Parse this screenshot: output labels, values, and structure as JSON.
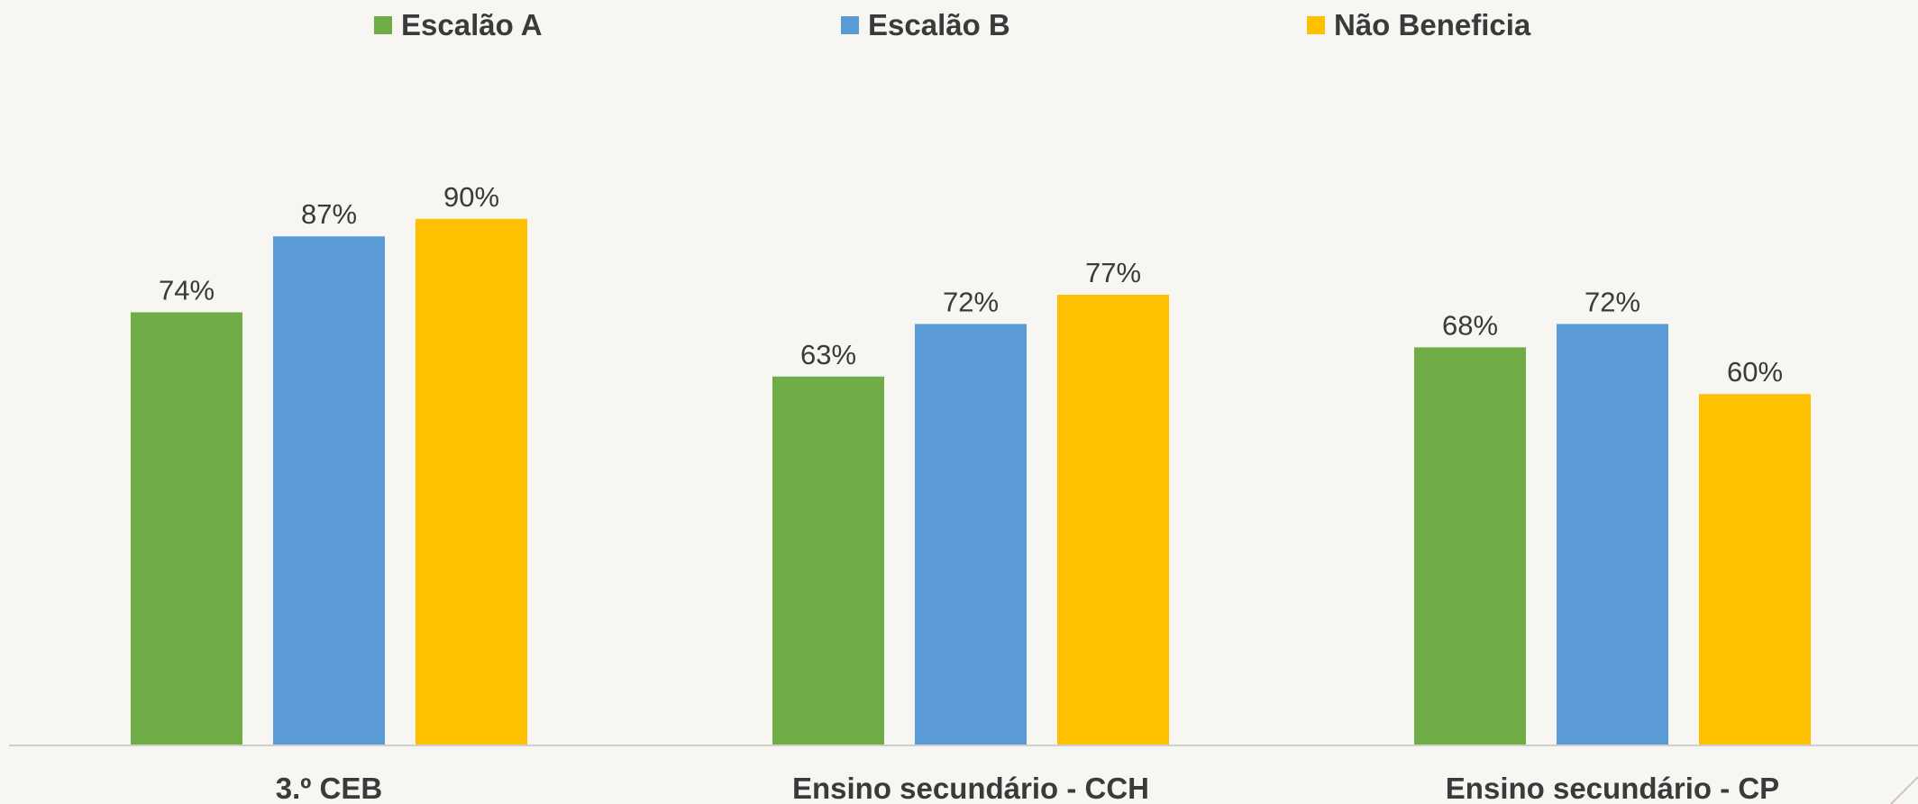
{
  "chart_data": {
    "type": "bar",
    "categories": [
      "3.º CEB",
      "Ensino secundário - CCH",
      "Ensino secundário - CP"
    ],
    "series": [
      {
        "name": "Escalão A",
        "color": "#70ad47",
        "values": [
          74,
          63,
          68
        ]
      },
      {
        "name": "Escalão B",
        "color": "#5b9bd5",
        "values": [
          87,
          72,
          72
        ]
      },
      {
        "name": "Não Beneficia",
        "color": "#ffc000",
        "values": [
          90,
          77,
          60
        ]
      }
    ],
    "value_suffix": "%",
    "ylim": [
      0,
      100
    ],
    "grid": false,
    "legend_position": "top"
  }
}
